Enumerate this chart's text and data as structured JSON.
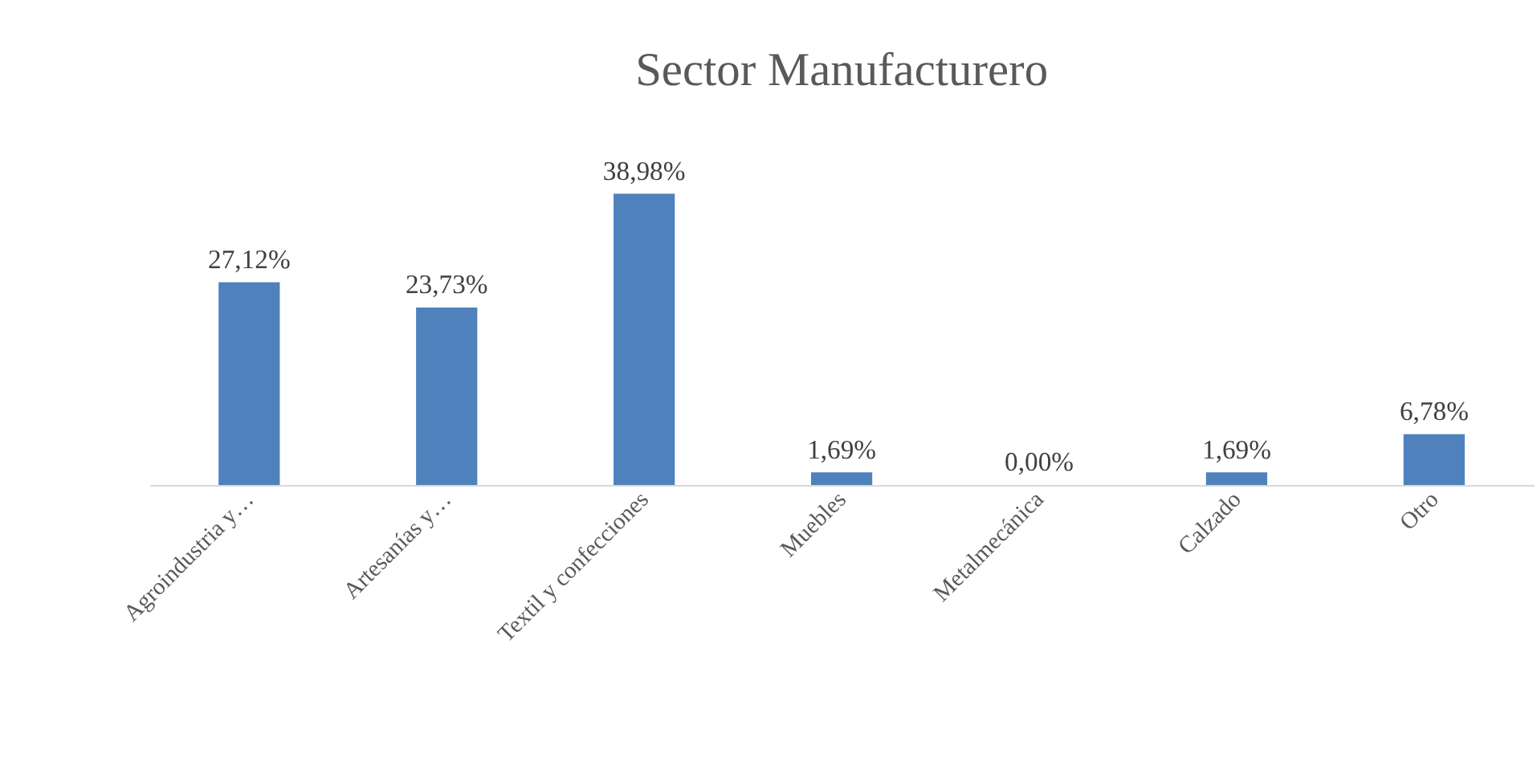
{
  "chart_data": {
    "type": "bar",
    "title": "Sector Manufacturero",
    "categories": [
      "Agroindustria y…",
      "Artesanías y…",
      "Textil y confecciones",
      "Muebles",
      "Metalmecánica",
      "Calzado",
      "Otro"
    ],
    "values": [
      27.12,
      23.73,
      38.98,
      1.69,
      0.0,
      1.69,
      6.78
    ],
    "value_labels": [
      "27,12%",
      "23,73%",
      "38,98%",
      "1,69%",
      "0,00%",
      "1,69%",
      "6,78%"
    ],
    "color": "#4f81bd",
    "grid": false
  }
}
